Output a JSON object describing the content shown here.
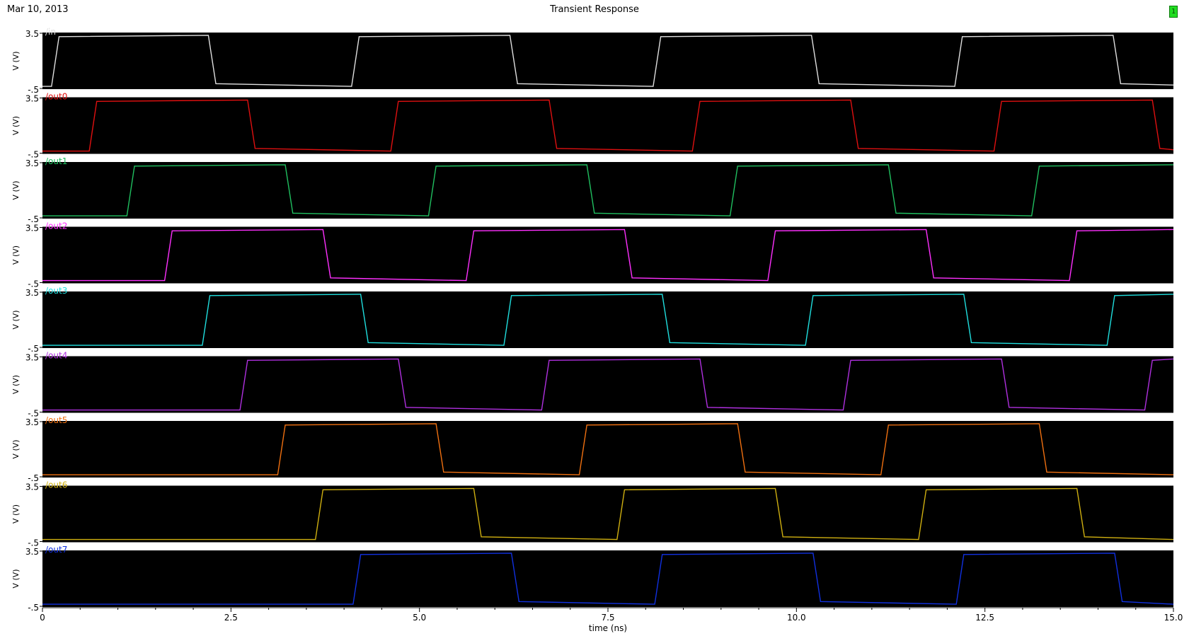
{
  "header": {
    "date": "Mar 10, 2013",
    "title": "Transient Response",
    "badge": "1"
  },
  "chart_data": {
    "type": "line",
    "title": "Transient Response",
    "xlabel": "time (ns)",
    "ylabel": "V (V)",
    "xlim": [
      0,
      15.0
    ],
    "ylim": [
      -0.5,
      3.5
    ],
    "xticks": [
      "0",
      "2.5",
      "5.0",
      "7.5",
      "10.0",
      "12.5",
      "15.0"
    ],
    "yticks": [
      "3.5",
      "-.5"
    ],
    "background": "#000000",
    "grid": false,
    "series": [
      {
        "name": "/in",
        "color": "#e0e0e0",
        "points": [
          [
            0,
            -0.4
          ],
          [
            0.12,
            -0.4
          ],
          [
            0.22,
            3.3
          ],
          [
            2.2,
            3.4
          ],
          [
            2.3,
            -0.2
          ],
          [
            4.1,
            -0.4
          ],
          [
            4.2,
            3.3
          ],
          [
            6.2,
            3.4
          ],
          [
            6.3,
            -0.2
          ],
          [
            8.1,
            -0.4
          ],
          [
            8.2,
            3.3
          ],
          [
            10.2,
            3.4
          ],
          [
            10.3,
            -0.2
          ],
          [
            12.1,
            -0.4
          ],
          [
            12.2,
            3.3
          ],
          [
            14.2,
            3.4
          ],
          [
            14.3,
            -0.2
          ],
          [
            15.0,
            -0.3
          ]
        ]
      },
      {
        "name": "/out0",
        "color": "#e01010",
        "points": [
          [
            0,
            -0.4
          ],
          [
            0.62,
            -0.4
          ],
          [
            0.72,
            3.3
          ],
          [
            2.72,
            3.4
          ],
          [
            2.82,
            -0.2
          ],
          [
            4.62,
            -0.4
          ],
          [
            4.72,
            3.3
          ],
          [
            6.72,
            3.4
          ],
          [
            6.82,
            -0.2
          ],
          [
            8.62,
            -0.4
          ],
          [
            8.72,
            3.3
          ],
          [
            10.72,
            3.4
          ],
          [
            10.82,
            -0.2
          ],
          [
            12.62,
            -0.4
          ],
          [
            12.72,
            3.3
          ],
          [
            14.72,
            3.4
          ],
          [
            14.82,
            -0.2
          ],
          [
            15.0,
            -0.3
          ]
        ]
      },
      {
        "name": "/out1",
        "color": "#20c060",
        "points": [
          [
            0,
            -0.4
          ],
          [
            1.12,
            -0.4
          ],
          [
            1.22,
            3.3
          ],
          [
            3.22,
            3.4
          ],
          [
            3.32,
            -0.2
          ],
          [
            5.12,
            -0.4
          ],
          [
            5.22,
            3.3
          ],
          [
            7.22,
            3.4
          ],
          [
            7.32,
            -0.2
          ],
          [
            9.12,
            -0.4
          ],
          [
            9.22,
            3.3
          ],
          [
            11.22,
            3.4
          ],
          [
            11.32,
            -0.2
          ],
          [
            13.12,
            -0.4
          ],
          [
            13.22,
            3.3
          ],
          [
            15.0,
            3.4
          ]
        ]
      },
      {
        "name": "/out2",
        "color": "#ff30ff",
        "points": [
          [
            0,
            -0.4
          ],
          [
            1.62,
            -0.4
          ],
          [
            1.72,
            3.3
          ],
          [
            3.72,
            3.4
          ],
          [
            3.82,
            -0.2
          ],
          [
            5.62,
            -0.4
          ],
          [
            5.72,
            3.3
          ],
          [
            7.72,
            3.4
          ],
          [
            7.82,
            -0.2
          ],
          [
            9.62,
            -0.4
          ],
          [
            9.72,
            3.3
          ],
          [
            11.72,
            3.4
          ],
          [
            11.82,
            -0.2
          ],
          [
            13.62,
            -0.4
          ],
          [
            13.72,
            3.3
          ],
          [
            15.0,
            3.4
          ]
        ]
      },
      {
        "name": "/out3",
        "color": "#20e0e0",
        "points": [
          [
            0,
            -0.4
          ],
          [
            2.12,
            -0.4
          ],
          [
            2.22,
            3.3
          ],
          [
            4.22,
            3.4
          ],
          [
            4.32,
            -0.2
          ],
          [
            6.12,
            -0.4
          ],
          [
            6.22,
            3.3
          ],
          [
            8.22,
            3.4
          ],
          [
            8.32,
            -0.2
          ],
          [
            10.12,
            -0.4
          ],
          [
            10.22,
            3.3
          ],
          [
            12.22,
            3.4
          ],
          [
            12.32,
            -0.2
          ],
          [
            14.12,
            -0.4
          ],
          [
            14.22,
            3.3
          ],
          [
            15.0,
            3.4
          ]
        ]
      },
      {
        "name": "/out4",
        "color": "#b030e0",
        "points": [
          [
            0,
            -0.4
          ],
          [
            2.62,
            -0.4
          ],
          [
            2.72,
            3.3
          ],
          [
            4.72,
            3.4
          ],
          [
            4.82,
            -0.2
          ],
          [
            6.62,
            -0.4
          ],
          [
            6.72,
            3.3
          ],
          [
            8.72,
            3.4
          ],
          [
            8.82,
            -0.2
          ],
          [
            10.62,
            -0.4
          ],
          [
            10.72,
            3.3
          ],
          [
            12.72,
            3.4
          ],
          [
            12.82,
            -0.2
          ],
          [
            14.62,
            -0.4
          ],
          [
            14.72,
            3.3
          ],
          [
            15.0,
            3.4
          ]
        ]
      },
      {
        "name": "/out5",
        "color": "#f07010",
        "points": [
          [
            0,
            -0.4
          ],
          [
            3.12,
            -0.4
          ],
          [
            3.22,
            3.3
          ],
          [
            5.22,
            3.4
          ],
          [
            5.32,
            -0.2
          ],
          [
            7.12,
            -0.4
          ],
          [
            7.22,
            3.3
          ],
          [
            9.22,
            3.4
          ],
          [
            9.32,
            -0.2
          ],
          [
            11.12,
            -0.4
          ],
          [
            11.22,
            3.3
          ],
          [
            13.22,
            3.4
          ],
          [
            13.32,
            -0.2
          ],
          [
            15.0,
            -0.4
          ]
        ]
      },
      {
        "name": "/out6",
        "color": "#d0b010",
        "points": [
          [
            0,
            -0.4
          ],
          [
            3.62,
            -0.4
          ],
          [
            3.72,
            3.3
          ],
          [
            5.72,
            3.4
          ],
          [
            5.82,
            -0.2
          ],
          [
            7.62,
            -0.4
          ],
          [
            7.72,
            3.3
          ],
          [
            9.72,
            3.4
          ],
          [
            9.82,
            -0.2
          ],
          [
            11.62,
            -0.4
          ],
          [
            11.72,
            3.3
          ],
          [
            13.72,
            3.4
          ],
          [
            13.82,
            -0.2
          ],
          [
            15.0,
            -0.4
          ]
        ]
      },
      {
        "name": "/out7",
        "color": "#1030e0",
        "points": [
          [
            0,
            -0.4
          ],
          [
            4.12,
            -0.4
          ],
          [
            4.22,
            3.3
          ],
          [
            6.22,
            3.4
          ],
          [
            6.32,
            -0.2
          ],
          [
            8.12,
            -0.4
          ],
          [
            8.22,
            3.3
          ],
          [
            10.22,
            3.4
          ],
          [
            10.32,
            -0.2
          ],
          [
            12.12,
            -0.4
          ],
          [
            12.22,
            3.3
          ],
          [
            14.22,
            3.4
          ],
          [
            14.32,
            -0.2
          ],
          [
            15.0,
            -0.4
          ]
        ]
      }
    ]
  }
}
